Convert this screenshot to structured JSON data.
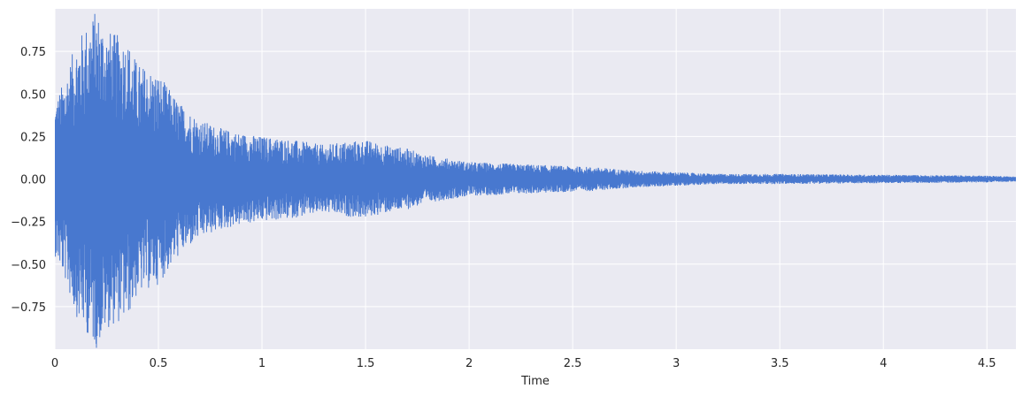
{
  "chart_data": {
    "type": "line",
    "subtype": "waveform",
    "title": "",
    "xlabel": "Time",
    "ylabel": "",
    "xlim": [
      0,
      4.64
    ],
    "ylim": [
      -1.0,
      1.0
    ],
    "grid": true,
    "series_color": "#4878cf",
    "background_color": "#eaeaf2",
    "grid_color": "#ffffff",
    "x_ticks": [
      {
        "value": 0,
        "label": "0"
      },
      {
        "value": 0.5,
        "label": "0.5"
      },
      {
        "value": 1,
        "label": "1"
      },
      {
        "value": 1.5,
        "label": "1.5"
      },
      {
        "value": 2,
        "label": "2"
      },
      {
        "value": 2.5,
        "label": "2.5"
      },
      {
        "value": 3,
        "label": "3"
      },
      {
        "value": 3.5,
        "label": "3.5"
      },
      {
        "value": 4,
        "label": "4"
      },
      {
        "value": 4.5,
        "label": "4.5"
      }
    ],
    "y_ticks": [
      {
        "value": 0.75,
        "label": "0.75"
      },
      {
        "value": 0.5,
        "label": "0.50"
      },
      {
        "value": 0.25,
        "label": "0.25"
      },
      {
        "value": 0.0,
        "label": "0.00"
      },
      {
        "value": -0.25,
        "label": "−0.25"
      },
      {
        "value": -0.5,
        "label": "−0.50"
      },
      {
        "value": -0.75,
        "label": "−0.75"
      }
    ],
    "envelope": {
      "time": [
        0,
        0.05,
        0.1,
        0.15,
        0.2,
        0.25,
        0.3,
        0.35,
        0.4,
        0.5,
        0.6,
        0.7,
        0.8,
        0.9,
        1.0,
        1.1,
        1.2,
        1.3,
        1.4,
        1.5,
        1.6,
        1.7,
        1.8,
        1.9,
        2.0,
        2.2,
        2.4,
        2.6,
        2.8,
        3.0,
        3.2,
        3.5,
        4.0,
        4.5,
        4.64
      ],
      "peak": [
        0.45,
        0.6,
        0.8,
        0.9,
        1.0,
        0.88,
        0.85,
        0.82,
        0.68,
        0.62,
        0.45,
        0.35,
        0.3,
        0.27,
        0.25,
        0.24,
        0.22,
        0.2,
        0.22,
        0.23,
        0.2,
        0.18,
        0.14,
        0.12,
        0.1,
        0.09,
        0.08,
        0.07,
        0.05,
        0.04,
        0.03,
        0.03,
        0.025,
        0.02,
        0.015
      ]
    }
  }
}
